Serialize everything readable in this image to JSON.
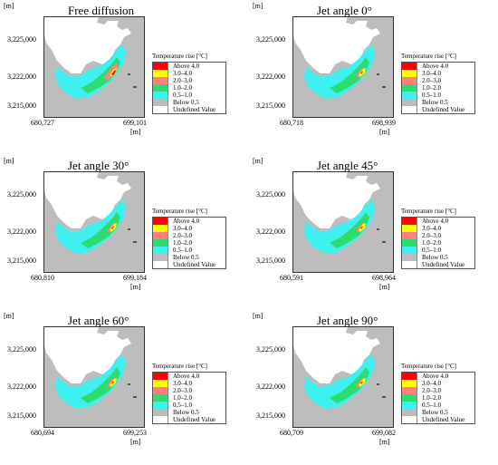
{
  "unit_label": "[m]",
  "legend": {
    "title": "Temperature rise [°C]",
    "items": [
      {
        "label": "Above 4.0",
        "color": "#ff0000"
      },
      {
        "label": "3.0–4.0",
        "color": "#ffff00"
      },
      {
        "label": "2.0–3.0",
        "color": "#ff8080"
      },
      {
        "label": "1.0–2.0",
        "color": "#2ddc6e"
      },
      {
        "label": "0.5–1.0",
        "color": "#3ff0f0"
      },
      {
        "label": "Below 0.5",
        "color": "#bdbdbd"
      },
      {
        "label": "Undefined Value",
        "color": "#ffffff"
      }
    ]
  },
  "panels": [
    {
      "title": "Free diffusion",
      "yticks": [
        "3,225,000",
        "3,222,000",
        "3,215,000"
      ],
      "xmin": "680,727",
      "xmax": "699,101"
    },
    {
      "title": "Jet angle 0°",
      "yticks": [
        "3,225,000",
        "3,222,000",
        "3,215,000"
      ],
      "xmin": "680,718",
      "xmax": "698,939"
    },
    {
      "title": "Jet angle 30°",
      "yticks": [
        "3,225,000",
        "3,222,000",
        "3,215,000"
      ],
      "xmin": "680,810",
      "xmax": "699,184"
    },
    {
      "title": "Jet angle 45°",
      "yticks": [
        "3,225,000",
        "3,222,000",
        "3,215,000"
      ],
      "xmin": "680,591",
      "xmax": "698,964"
    },
    {
      "title": "Jet angle 60°",
      "yticks": [
        "3,225,000",
        "3,222,000",
        "3,215,000"
      ],
      "xmin": "680,694",
      "xmax": "699,253"
    },
    {
      "title": "Jet angle 90°",
      "yticks": [
        "3,225,000",
        "3,222,000",
        "3,215,000"
      ],
      "xmin": "680,709",
      "xmax": "699,082"
    }
  ]
}
